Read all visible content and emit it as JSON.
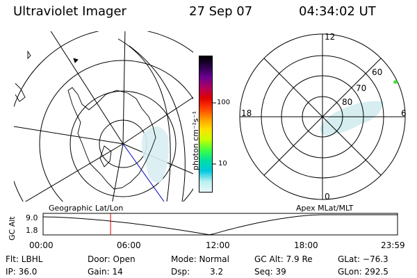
{
  "header": {
    "instrument": "Ultraviolet Imager",
    "date": "27 Sep 07",
    "time": "04:34:02 UT"
  },
  "geo_map": {
    "label": "Geographic Lat/Lon"
  },
  "colorbar": {
    "unit_label": "photon cm⁻²s⁻¹",
    "ticks": [
      "100",
      "10"
    ],
    "colors": [
      "#000000",
      "#2a004a",
      "#6a0090",
      "#b00060",
      "#e00000",
      "#ff4000",
      "#ff9a00",
      "#ffe000",
      "#c8ff00",
      "#40ff40",
      "#00e0a0",
      "#00c8e0",
      "#b8f0f0",
      "#e8f8f8"
    ]
  },
  "polar_plot": {
    "label": "Apex MLat/MLT",
    "mlt_labels": {
      "top": "12",
      "left": "18",
      "right": "6",
      "bottom": "0"
    },
    "lat_labels": [
      "60",
      "70",
      "80"
    ]
  },
  "altitude_strip": {
    "ylabel": "GC Alt",
    "y_ticks": [
      "9.0",
      "1.8"
    ],
    "x_ticks": [
      "00:00",
      "06:00",
      "12:00",
      "18:00",
      "23:59"
    ],
    "marker_time_hours": 4.57,
    "marker_color": "#cc0000"
  },
  "status": {
    "row1": [
      {
        "label": "Flt: LBHL"
      },
      {
        "label": "Door: Open"
      },
      {
        "label": "Mode: Normal"
      },
      {
        "label": "GC Alt: 7.9 Re"
      },
      {
        "label": "GLat: −76.3"
      }
    ],
    "row2": [
      {
        "label": "IP: 36.0"
      },
      {
        "label": "Gain: 14"
      },
      {
        "label": "Dsp:"
      },
      {
        "label": "3.2"
      },
      {
        "label": "Seq: 39"
      },
      {
        "label": "GLon: 292.5"
      }
    ]
  }
}
